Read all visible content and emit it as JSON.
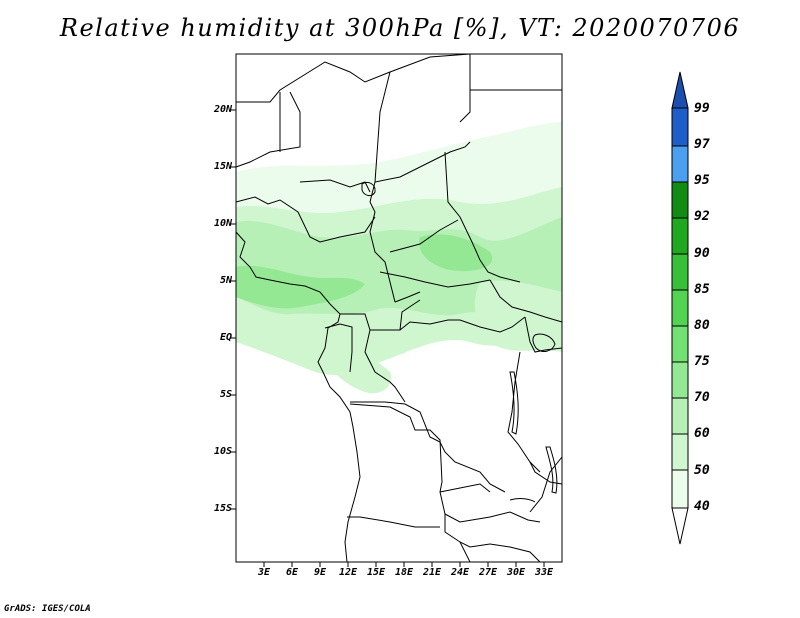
{
  "title": "Relative humidity at 300hPa [%], VT: 2020070706",
  "credit": "GrADS: IGES/COLA",
  "map": {
    "lat_labels": [
      "20N",
      "15N",
      "10N",
      "5N",
      "EQ",
      "5S",
      "10S",
      "15S"
    ],
    "lon_labels": [
      "3E",
      "6E",
      "9E",
      "12E",
      "15E",
      "18E",
      "21E",
      "24E",
      "27E",
      "30E",
      "33E"
    ],
    "lon_range": [
      0,
      35
    ],
    "lat_range": [
      -20,
      25
    ]
  },
  "colorbar": {
    "levels": [
      "99",
      "97",
      "95",
      "92",
      "90",
      "85",
      "80",
      "75",
      "70",
      "60",
      "50",
      "40"
    ],
    "colors": [
      "#1e5ec8",
      "#2a7ae0",
      "#4aa0ee",
      "#128c12",
      "#20a820",
      "#38c038",
      "#52d452",
      "#72e072",
      "#94e894",
      "#b6f0b6",
      "#d0f6d0",
      "#ecfcec"
    ],
    "top_arrow_color": "#1a4fb0",
    "bottom_arrow_color": "#ffffff"
  },
  "humidity_colors": {
    "light": "#ecfcec",
    "mid": "#d0f6d0",
    "green": "#b6f0b6",
    "deep": "#94e894"
  }
}
